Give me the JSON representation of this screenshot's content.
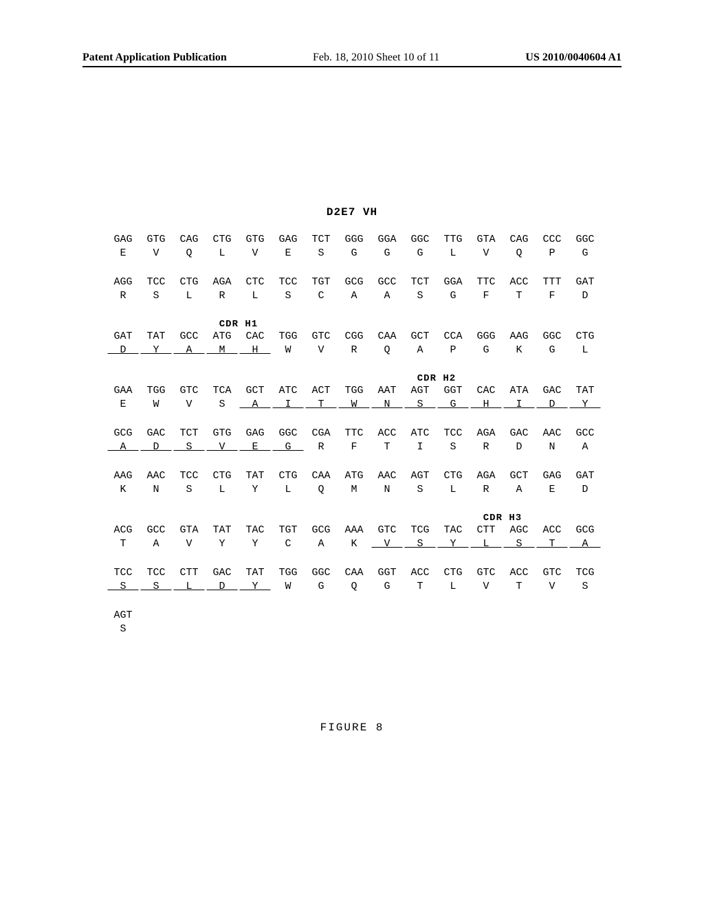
{
  "header": {
    "left": "Patent Application Publication",
    "center": "Feb. 18, 2010  Sheet 10 of 11",
    "right": "US 2010/0040604 A1"
  },
  "title": "D2E7 VH",
  "figure_caption": "FIGURE 8",
  "cdr_labels": {
    "h1": "CDR H1",
    "h2": "CDR H2",
    "h3": "CDR H3"
  },
  "rows": [
    {
      "codons": [
        "GAG",
        "GTG",
        "CAG",
        "CTG",
        "GTG",
        "GAG",
        "TCT",
        "GGG",
        "GGA",
        "GGC",
        "TTG",
        "GTA",
        "CAG",
        "CCC",
        "GGC"
      ],
      "aa": [
        "E",
        "V",
        "Q",
        "L",
        "V",
        "E",
        "S",
        "G",
        "G",
        "G",
        "L",
        "V",
        "Q",
        "P",
        "G"
      ],
      "ul": [
        0,
        0,
        0,
        0,
        0,
        0,
        0,
        0,
        0,
        0,
        0,
        0,
        0,
        0,
        0
      ]
    },
    {
      "codons": [
        "AGG",
        "TCC",
        "CTG",
        "AGA",
        "CTC",
        "TCC",
        "TGT",
        "GCG",
        "GCC",
        "TCT",
        "GGA",
        "TTC",
        "ACC",
        "TTT",
        "GAT"
      ],
      "aa": [
        "R",
        "S",
        "L",
        "R",
        "L",
        "S",
        "C",
        "A",
        "A",
        "S",
        "G",
        "F",
        "T",
        "F",
        "D"
      ],
      "ul": [
        0,
        0,
        0,
        0,
        0,
        0,
        0,
        0,
        0,
        0,
        0,
        0,
        0,
        0,
        0
      ]
    },
    {
      "codons": [
        "GAT",
        "TAT",
        "GCC",
        "ATG",
        "CAC",
        "TGG",
        "GTC",
        "CGG",
        "CAA",
        "GCT",
        "CCA",
        "GGG",
        "AAG",
        "GGC",
        "CTG"
      ],
      "aa": [
        "D",
        "Y",
        "A",
        "M",
        "H",
        "W",
        "V",
        "R",
        "Q",
        "A",
        "P",
        "G",
        "K",
        "G",
        "L"
      ],
      "ul": [
        1,
        1,
        1,
        1,
        1,
        0,
        0,
        0,
        0,
        0,
        0,
        0,
        0,
        0,
        0
      ],
      "cdr_before": {
        "label": "h1",
        "start": 3,
        "span": 2
      }
    },
    {
      "codons": [
        "GAA",
        "TGG",
        "GTC",
        "TCA",
        "GCT",
        "ATC",
        "ACT",
        "TGG",
        "AAT",
        "AGT",
        "GGT",
        "CAC",
        "ATA",
        "GAC",
        "TAT"
      ],
      "aa": [
        "E",
        "W",
        "V",
        "S",
        "A",
        "I",
        "T",
        "W",
        "N",
        "S",
        "G",
        "H",
        "I",
        "D",
        "Y"
      ],
      "ul": [
        0,
        0,
        0,
        0,
        1,
        1,
        1,
        1,
        1,
        1,
        1,
        1,
        1,
        1,
        1
      ],
      "cdr_before": {
        "label": "h2",
        "start": 9,
        "span": 2
      }
    },
    {
      "codons": [
        "GCG",
        "GAC",
        "TCT",
        "GTG",
        "GAG",
        "GGC",
        "CGA",
        "TTC",
        "ACC",
        "ATC",
        "TCC",
        "AGA",
        "GAC",
        "AAC",
        "GCC"
      ],
      "aa": [
        "A",
        "D",
        "S",
        "V",
        "E",
        "G",
        "R",
        "F",
        "T",
        "I",
        "S",
        "R",
        "D",
        "N",
        "A"
      ],
      "ul": [
        1,
        1,
        1,
        1,
        1,
        1,
        0,
        0,
        0,
        0,
        0,
        0,
        0,
        0,
        0
      ]
    },
    {
      "codons": [
        "AAG",
        "AAC",
        "TCC",
        "CTG",
        "TAT",
        "CTG",
        "CAA",
        "ATG",
        "AAC",
        "AGT",
        "CTG",
        "AGA",
        "GCT",
        "GAG",
        "GAT"
      ],
      "aa": [
        "K",
        "N",
        "S",
        "L",
        "Y",
        "L",
        "Q",
        "M",
        "N",
        "S",
        "L",
        "R",
        "A",
        "E",
        "D"
      ],
      "ul": [
        0,
        0,
        0,
        0,
        0,
        0,
        0,
        0,
        0,
        0,
        0,
        0,
        0,
        0,
        0
      ]
    },
    {
      "codons": [
        "ACG",
        "GCC",
        "GTA",
        "TAT",
        "TAC",
        "TGT",
        "GCG",
        "AAA",
        "GTC",
        "TCG",
        "TAC",
        "CTT",
        "AGC",
        "ACC",
        "GCG"
      ],
      "aa": [
        "T",
        "A",
        "V",
        "Y",
        "Y",
        "C",
        "A",
        "K",
        "V",
        "S",
        "Y",
        "L",
        "S",
        "T",
        "A"
      ],
      "ul": [
        0,
        0,
        0,
        0,
        0,
        0,
        0,
        0,
        1,
        1,
        1,
        1,
        1,
        1,
        1
      ],
      "cdr_before": {
        "label": "h3",
        "start": 11,
        "span": 2
      }
    },
    {
      "codons": [
        "TCC",
        "TCC",
        "CTT",
        "GAC",
        "TAT",
        "TGG",
        "GGC",
        "CAA",
        "GGT",
        "ACC",
        "CTG",
        "GTC",
        "ACC",
        "GTC",
        "TCG"
      ],
      "aa": [
        "S",
        "S",
        "L",
        "D",
        "Y",
        "W",
        "G",
        "Q",
        "G",
        "T",
        "L",
        "V",
        "T",
        "V",
        "S"
      ],
      "ul": [
        1,
        1,
        1,
        1,
        1,
        0,
        0,
        0,
        0,
        0,
        0,
        0,
        0,
        0,
        0
      ]
    },
    {
      "codons": [
        "AGT"
      ],
      "aa": [
        "S"
      ],
      "ul": [
        0
      ]
    }
  ]
}
